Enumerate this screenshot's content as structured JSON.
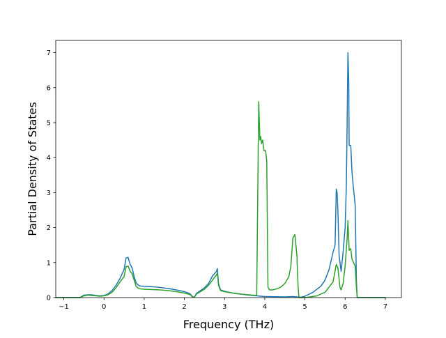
{
  "chart_data": {
    "type": "line",
    "title": "",
    "xlabel": "Frequency (THz)",
    "ylabel": "Partial Density of States",
    "xlim": [
      -1.2,
      7.4
    ],
    "ylim": [
      0,
      7.35
    ],
    "xticks": [
      -1,
      0,
      1,
      2,
      3,
      4,
      5,
      6,
      7
    ],
    "xtick_labels": [
      "−1",
      "0",
      "1",
      "2",
      "3",
      "4",
      "5",
      "6",
      "7"
    ],
    "yticks": [
      0,
      1,
      2,
      3,
      4,
      5,
      6,
      7
    ],
    "ytick_labels": [
      "0",
      "1",
      "2",
      "3",
      "4",
      "5",
      "6",
      "7"
    ],
    "grid": false,
    "legend": "none",
    "series": [
      {
        "color": "#1f77b4",
        "points": [
          [
            -1.2,
            0
          ],
          [
            -0.6,
            0
          ],
          [
            -0.5,
            0.07
          ],
          [
            -0.4,
            0.08
          ],
          [
            -0.3,
            0.08
          ],
          [
            -0.2,
            0.06
          ],
          [
            -0.1,
            0.05
          ],
          [
            0,
            0.06
          ],
          [
            0.1,
            0.1
          ],
          [
            0.2,
            0.2
          ],
          [
            0.3,
            0.35
          ],
          [
            0.4,
            0.55
          ],
          [
            0.5,
            0.8
          ],
          [
            0.55,
            1.13
          ],
          [
            0.6,
            1.15
          ],
          [
            0.65,
            0.95
          ],
          [
            0.7,
            0.85
          ],
          [
            0.75,
            0.6
          ],
          [
            0.8,
            0.42
          ],
          [
            0.85,
            0.36
          ],
          [
            0.9,
            0.33
          ],
          [
            1.0,
            0.32
          ],
          [
            1.2,
            0.31
          ],
          [
            1.4,
            0.29
          ],
          [
            1.6,
            0.26
          ],
          [
            1.8,
            0.22
          ],
          [
            2.0,
            0.17
          ],
          [
            2.1,
            0.13
          ],
          [
            2.15,
            0.1
          ],
          [
            2.2,
            0.03
          ],
          [
            2.25,
            0.01
          ],
          [
            2.3,
            0.12
          ],
          [
            2.4,
            0.2
          ],
          [
            2.5,
            0.28
          ],
          [
            2.6,
            0.4
          ],
          [
            2.7,
            0.62
          ],
          [
            2.8,
            0.75
          ],
          [
            2.82,
            0.83
          ],
          [
            2.85,
            0.4
          ],
          [
            2.9,
            0.22
          ],
          [
            3.0,
            0.18
          ],
          [
            3.2,
            0.13
          ],
          [
            3.4,
            0.1
          ],
          [
            3.6,
            0.07
          ],
          [
            3.8,
            0.05
          ],
          [
            4.0,
            0.03
          ],
          [
            4.5,
            0.02
          ],
          [
            4.7,
            0.03
          ],
          [
            4.8,
            0.02
          ],
          [
            4.9,
            0.01
          ],
          [
            5.0,
            0.04
          ],
          [
            5.2,
            0.15
          ],
          [
            5.4,
            0.33
          ],
          [
            5.5,
            0.5
          ],
          [
            5.6,
            0.8
          ],
          [
            5.7,
            1.3
          ],
          [
            5.75,
            1.5
          ],
          [
            5.78,
            3.1
          ],
          [
            5.8,
            3.0
          ],
          [
            5.82,
            2.5
          ],
          [
            5.85,
            1.2
          ],
          [
            5.9,
            0.75
          ],
          [
            5.95,
            1.3
          ],
          [
            6.0,
            2.0
          ],
          [
            6.03,
            3.2
          ],
          [
            6.05,
            5.0
          ],
          [
            6.07,
            7.0
          ],
          [
            6.09,
            6.2
          ],
          [
            6.1,
            4.35
          ],
          [
            6.14,
            4.35
          ],
          [
            6.17,
            3.6
          ],
          [
            6.2,
            3.2
          ],
          [
            6.25,
            2.65
          ],
          [
            6.28,
            0.5
          ],
          [
            6.3,
            0
          ],
          [
            7.0,
            0
          ]
        ]
      },
      {
        "color": "#2ca02c",
        "points": [
          [
            -1.2,
            0
          ],
          [
            -0.6,
            0
          ],
          [
            -0.5,
            0.05
          ],
          [
            -0.4,
            0.07
          ],
          [
            -0.3,
            0.06
          ],
          [
            -0.2,
            0.05
          ],
          [
            -0.1,
            0.04
          ],
          [
            0,
            0.05
          ],
          [
            0.1,
            0.08
          ],
          [
            0.2,
            0.15
          ],
          [
            0.3,
            0.28
          ],
          [
            0.4,
            0.45
          ],
          [
            0.5,
            0.6
          ],
          [
            0.55,
            0.88
          ],
          [
            0.6,
            0.9
          ],
          [
            0.65,
            0.75
          ],
          [
            0.7,
            0.68
          ],
          [
            0.75,
            0.5
          ],
          [
            0.8,
            0.32
          ],
          [
            0.85,
            0.27
          ],
          [
            0.9,
            0.25
          ],
          [
            1.0,
            0.24
          ],
          [
            1.2,
            0.23
          ],
          [
            1.4,
            0.22
          ],
          [
            1.6,
            0.2
          ],
          [
            1.8,
            0.17
          ],
          [
            2.0,
            0.13
          ],
          [
            2.1,
            0.1
          ],
          [
            2.15,
            0.08
          ],
          [
            2.2,
            0.02
          ],
          [
            2.25,
            0.01
          ],
          [
            2.3,
            0.1
          ],
          [
            2.4,
            0.17
          ],
          [
            2.5,
            0.24
          ],
          [
            2.6,
            0.35
          ],
          [
            2.7,
            0.5
          ],
          [
            2.8,
            0.65
          ],
          [
            2.82,
            0.7
          ],
          [
            2.85,
            0.35
          ],
          [
            2.9,
            0.2
          ],
          [
            3.0,
            0.17
          ],
          [
            3.2,
            0.13
          ],
          [
            3.4,
            0.1
          ],
          [
            3.6,
            0.08
          ],
          [
            3.8,
            0.06
          ],
          [
            3.85,
            5.6
          ],
          [
            3.88,
            4.5
          ],
          [
            3.9,
            4.6
          ],
          [
            3.92,
            4.4
          ],
          [
            3.95,
            4.5
          ],
          [
            3.98,
            4.2
          ],
          [
            4.02,
            4.2
          ],
          [
            4.05,
            3.9
          ],
          [
            4.08,
            0.3
          ],
          [
            4.12,
            0.22
          ],
          [
            4.2,
            0.22
          ],
          [
            4.3,
            0.25
          ],
          [
            4.4,
            0.3
          ],
          [
            4.5,
            0.4
          ],
          [
            4.6,
            0.6
          ],
          [
            4.65,
            0.9
          ],
          [
            4.7,
            1.7
          ],
          [
            4.75,
            1.8
          ],
          [
            4.8,
            1.2
          ],
          [
            4.83,
            0.3
          ],
          [
            4.85,
            0
          ],
          [
            5.0,
            0
          ],
          [
            5.3,
            0.05
          ],
          [
            5.5,
            0.15
          ],
          [
            5.7,
            0.45
          ],
          [
            5.78,
            0.95
          ],
          [
            5.82,
            0.85
          ],
          [
            5.87,
            0.3
          ],
          [
            5.9,
            0.22
          ],
          [
            5.95,
            0.4
          ],
          [
            6.0,
            0.9
          ],
          [
            6.05,
            1.7
          ],
          [
            6.07,
            2.2
          ],
          [
            6.1,
            1.35
          ],
          [
            6.14,
            1.4
          ],
          [
            6.17,
            1.1
          ],
          [
            6.25,
            0.9
          ],
          [
            6.28,
            0.3
          ],
          [
            6.3,
            0
          ],
          [
            7.0,
            0
          ]
        ]
      }
    ]
  }
}
